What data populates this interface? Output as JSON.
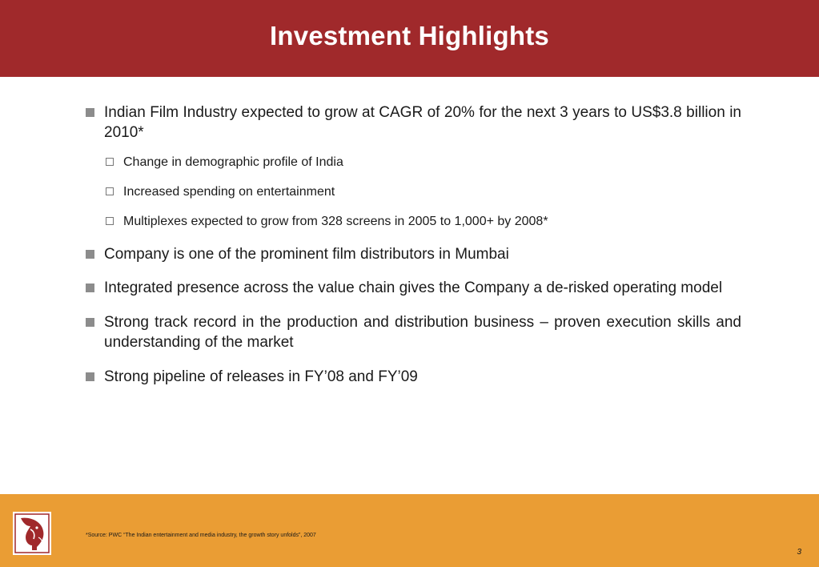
{
  "slide": {
    "title": "Investment Highlights",
    "bullets": [
      {
        "text": "Indian Film Industry expected to grow at CAGR of 20% for the next 3 years to US$3.8 billion in 2010*",
        "subbullets": [
          "Change in demographic profile of India",
          "Increased spending on entertainment",
          "Multiplexes expected to grow from 328 screens in 2005 to 1,000+ by 2008*"
        ]
      },
      {
        "text": "Company is one of the prominent film distributors in Mumbai"
      },
      {
        "text": "Integrated presence across the value chain gives the Company a de-risked operating model"
      },
      {
        "text": "Strong track record in the production and distribution business – proven execution skills and understanding of the market"
      },
      {
        "text": "Strong pipeline of releases in FY’08 and FY’09"
      }
    ],
    "footnote": "*Source: PWC “The Indian entertainment and media industry, the growth story unfolds”, 2007",
    "page_number": "3"
  },
  "colors": {
    "header": "#a0292b",
    "footer": "#ea9d34",
    "bullet_marker": "#8c8c8c"
  },
  "icons": {
    "bullet": "square-bullet-icon",
    "subbullet": "hollow-square-bullet-icon",
    "logo": "elephant-logo-icon"
  }
}
